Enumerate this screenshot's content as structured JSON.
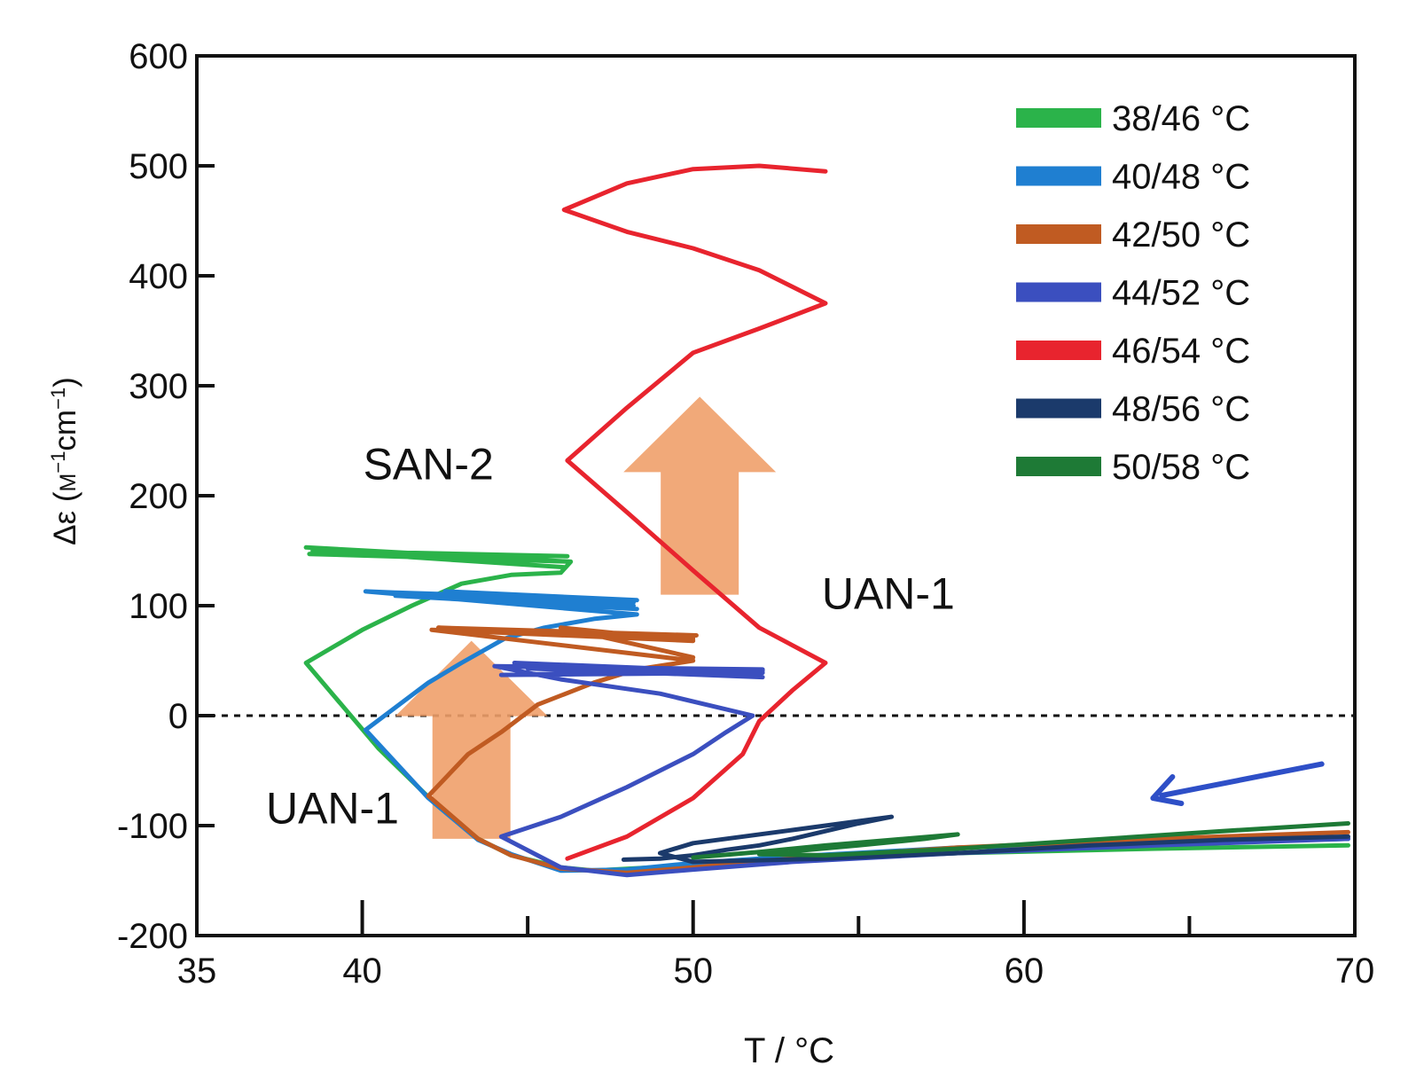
{
  "chart_data": {
    "type": "line",
    "xlabel": "T / °C",
    "ylabel_prefix": "Δε (",
    "ylabel_unit": "M",
    "ylabel_rest": "cm",
    "ylabel_sup": "−1",
    "ylabel_close": ")",
    "xlim": [
      35,
      70
    ],
    "ylim": [
      -200,
      600
    ],
    "xticks": [
      35,
      40,
      50,
      60,
      70
    ],
    "xticks_minor": [
      45,
      55,
      65
    ],
    "yticks": [
      -200,
      -100,
      0,
      100,
      200,
      300,
      400,
      500,
      600
    ],
    "zero_line": true,
    "legend_position": "top-right",
    "annotations": [
      {
        "text": "SAN-2",
        "x": 42.0,
        "y": 215
      },
      {
        "text": "UAN-1",
        "x": 55.9,
        "y": 97
      },
      {
        "text": "UAN-1",
        "x": 39.1,
        "y": -98
      }
    ],
    "arrows": [
      {
        "kind": "block",
        "color": "#f0a06a",
        "from": [
          50.2,
          110
        ],
        "to": [
          50.2,
          290
        ]
      },
      {
        "kind": "block",
        "color": "#f0a06a",
        "from": [
          43.3,
          -112
        ],
        "to": [
          43.3,
          68
        ]
      },
      {
        "kind": "line",
        "color": "#2e4fc7",
        "from": [
          69.0,
          -44
        ],
        "to": [
          63.9,
          -75
        ]
      }
    ],
    "series": [
      {
        "name": "38/46 °C",
        "color": "#2bb34a",
        "points": [
          [
            69.8,
            -118
          ],
          [
            64,
            -121
          ],
          [
            58,
            -125
          ],
          [
            53,
            -131
          ],
          [
            50,
            -136
          ],
          [
            47,
            -141
          ],
          [
            46,
            -138
          ],
          [
            44.5,
            -127
          ],
          [
            43.5,
            -112
          ],
          [
            42.2,
            -80
          ],
          [
            40.5,
            -30
          ],
          [
            38.3,
            48
          ],
          [
            40,
            78
          ],
          [
            41.5,
            100
          ],
          [
            43,
            120
          ],
          [
            44.5,
            128
          ],
          [
            46,
            130
          ],
          [
            46.3,
            140
          ],
          [
            38.3,
            153
          ],
          [
            46.3,
            140
          ],
          [
            38.4,
            147
          ],
          [
            46.2,
            145
          ],
          [
            38.5,
            150
          ],
          [
            46.1,
            135
          ]
        ]
      },
      {
        "name": "40/48 °C",
        "color": "#1f7fd1",
        "points": [
          [
            69.8,
            -112
          ],
          [
            64,
            -116
          ],
          [
            58,
            -120
          ],
          [
            53,
            -128
          ],
          [
            50,
            -134
          ],
          [
            48,
            -140
          ],
          [
            46,
            -141
          ],
          [
            44.5,
            -126
          ],
          [
            43.5,
            -113
          ],
          [
            42,
            -75
          ],
          [
            40.1,
            -13
          ],
          [
            42,
            30
          ],
          [
            43,
            48
          ],
          [
            44.3,
            70
          ],
          [
            45.5,
            80
          ],
          [
            47,
            88
          ],
          [
            48.3,
            92
          ],
          [
            40.1,
            113
          ],
          [
            48.2,
            103
          ],
          [
            41,
            109
          ],
          [
            48.3,
            97
          ],
          [
            40.9,
            112
          ],
          [
            48.3,
            105
          ],
          [
            42.5,
            113
          ],
          [
            48.2,
            100
          ]
        ]
      },
      {
        "name": "42/50 °C",
        "color": "#c05b22",
        "points": [
          [
            69.8,
            -106
          ],
          [
            64,
            -112
          ],
          [
            58,
            -120
          ],
          [
            53,
            -130
          ],
          [
            50,
            -138
          ],
          [
            48,
            -143
          ],
          [
            46,
            -139
          ],
          [
            44.5,
            -127
          ],
          [
            43.5,
            -112
          ],
          [
            42,
            -73
          ],
          [
            43.2,
            -35
          ],
          [
            44.2,
            -15
          ],
          [
            45.3,
            10
          ],
          [
            47,
            30
          ],
          [
            48.3,
            42
          ],
          [
            50,
            50
          ],
          [
            42.1,
            78
          ],
          [
            50,
            70
          ],
          [
            42.3,
            80
          ],
          [
            50.1,
            73
          ],
          [
            43,
            77
          ],
          [
            50,
            68
          ],
          [
            46,
            80
          ],
          [
            50,
            53
          ]
        ]
      },
      {
        "name": "44/52 °C",
        "color": "#3b4fbf",
        "points": [
          [
            69.8,
            -112
          ],
          [
            64,
            -118
          ],
          [
            58,
            -125
          ],
          [
            53,
            -133
          ],
          [
            50,
            -140
          ],
          [
            48,
            -145
          ],
          [
            46,
            -138
          ],
          [
            44.2,
            -110
          ],
          [
            46,
            -92
          ],
          [
            48,
            -65
          ],
          [
            50,
            -35
          ],
          [
            51,
            -15
          ],
          [
            51.8,
            0
          ],
          [
            49,
            20
          ],
          [
            46,
            33
          ],
          [
            44,
            45
          ],
          [
            52.1,
            42
          ],
          [
            44.2,
            37
          ],
          [
            52.1,
            39
          ],
          [
            44.6,
            48
          ],
          [
            52.1,
            35
          ],
          [
            45,
            43
          ],
          [
            52.1,
            41
          ]
        ]
      },
      {
        "name": "46/54 °C",
        "color": "#e8242e",
        "points": [
          [
            46.2,
            -130
          ],
          [
            48,
            -110
          ],
          [
            50,
            -75
          ],
          [
            51.5,
            -35
          ],
          [
            52,
            -5
          ],
          [
            53,
            23
          ],
          [
            54,
            48
          ],
          [
            52,
            80
          ],
          [
            50,
            132
          ],
          [
            48,
            185
          ],
          [
            46.2,
            232
          ],
          [
            48,
            280
          ],
          [
            50,
            330
          ],
          [
            52,
            352
          ],
          [
            54,
            375
          ],
          [
            52,
            405
          ],
          [
            50,
            425
          ],
          [
            48,
            440
          ],
          [
            46.1,
            460
          ],
          [
            48,
            484
          ],
          [
            50,
            497
          ],
          [
            52,
            500
          ],
          [
            54,
            495
          ]
        ]
      },
      {
        "name": "48/56 °C",
        "color": "#1b3a6b",
        "points": [
          [
            47.9,
            -131
          ],
          [
            49,
            -130
          ],
          [
            50,
            -127
          ],
          [
            51,
            -122
          ],
          [
            52,
            -118
          ],
          [
            53,
            -112
          ],
          [
            54,
            -105
          ],
          [
            55,
            -98
          ],
          [
            56,
            -92
          ],
          [
            55,
            -96
          ],
          [
            53,
            -104
          ],
          [
            50,
            -116
          ],
          [
            49,
            -125
          ],
          [
            50,
            -133
          ],
          [
            54,
            -130
          ],
          [
            58,
            -125
          ],
          [
            62,
            -118
          ],
          [
            66,
            -113
          ],
          [
            69.8,
            -110
          ]
        ]
      },
      {
        "name": "50/58 °C",
        "color": "#1e7a36",
        "points": [
          [
            50,
            -129
          ],
          [
            52,
            -124
          ],
          [
            54,
            -118
          ],
          [
            56,
            -113
          ],
          [
            58,
            -108
          ],
          [
            57,
            -112
          ],
          [
            55,
            -118
          ],
          [
            52,
            -126
          ],
          [
            54,
            -127
          ],
          [
            58,
            -121
          ],
          [
            62,
            -113
          ],
          [
            66,
            -105
          ],
          [
            69.8,
            -98
          ]
        ]
      }
    ]
  }
}
